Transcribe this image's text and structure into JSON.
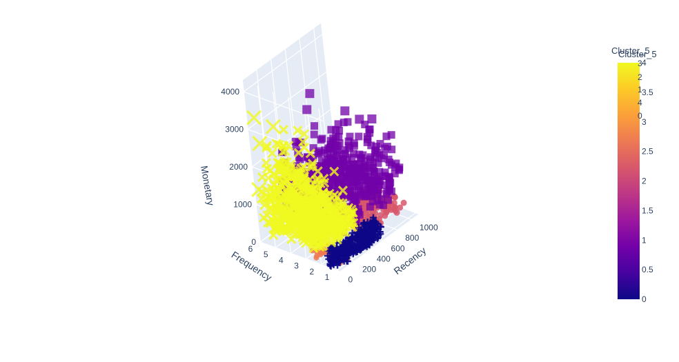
{
  "chart_data": {
    "type": "scatter",
    "dimensions": "3d",
    "x_axis": {
      "label": "Frequency",
      "ticks": [
        "1",
        "2",
        "3",
        "4",
        "5",
        "6"
      ],
      "range": [
        0.8,
        6
      ]
    },
    "y_axis": {
      "label": "Recency",
      "ticks": [
        "0",
        "200",
        "400",
        "600",
        "800",
        "1000"
      ],
      "range": [
        0,
        1100
      ]
    },
    "z_axis": {
      "label": "Monetary",
      "ticks": [
        "0",
        "1000",
        "2000",
        "3000",
        "4000"
      ],
      "range": [
        0,
        4300
      ]
    },
    "color_variable": "Cluster_5",
    "colorbar": {
      "title": "Cluster_5",
      "ticks": [
        "0",
        "0.5",
        "1",
        "1.5",
        "2",
        "2.5",
        "3",
        "3.5",
        "4"
      ],
      "range": [
        0,
        4
      ],
      "colors": [
        "#0d0887",
        "#46039f",
        "#7201a8",
        "#9c179e",
        "#bd3786",
        "#d8576b",
        "#ed7953",
        "#fb9f3a",
        "#fdca26",
        "#f0f921"
      ]
    },
    "legend_fragments": [
      "Cluster_5",
      "3",
      "2",
      "1",
      "4",
      "0"
    ],
    "series": [
      {
        "cluster": 0,
        "color": "#0d0887",
        "symbol": "cross",
        "x_range": [
          1,
          2
        ],
        "y_range": [
          0,
          600
        ],
        "z_range": [
          0,
          400
        ]
      },
      {
        "cluster": 1,
        "color": "#7201a8",
        "symbol": "square",
        "x_range": [
          1,
          6
        ],
        "y_range": [
          100,
          1000
        ],
        "z_range": [
          500,
          4300
        ]
      },
      {
        "cluster": 2,
        "color": "#d8576b",
        "symbol": "circle",
        "x_range": [
          1,
          3
        ],
        "y_range": [
          500,
          1000
        ],
        "z_range": [
          0,
          700
        ]
      },
      {
        "cluster": 3,
        "color": "#ed7953",
        "symbol": "circle",
        "x_range": [
          1,
          3
        ],
        "y_range": [
          0,
          200
        ],
        "z_range": [
          0,
          500
        ]
      },
      {
        "cluster": 4,
        "color": "#f0f921",
        "symbol": "x",
        "x_range": [
          1,
          6
        ],
        "y_range": [
          0,
          600
        ],
        "z_range": [
          300,
          3300
        ]
      }
    ]
  }
}
